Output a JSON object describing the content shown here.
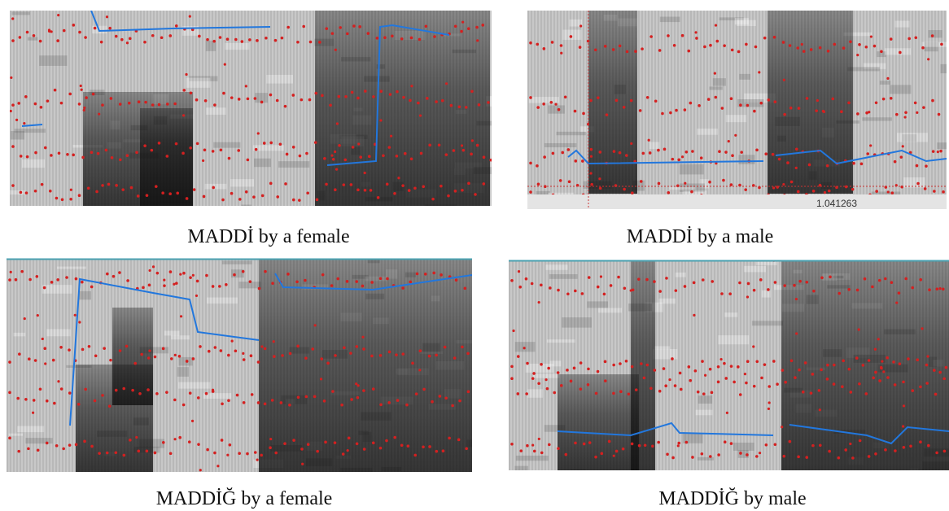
{
  "panels": [
    {
      "caption": "MADDİ by a female"
    },
    {
      "caption": "MADDİ by a male",
      "readout": "1.041263"
    },
    {
      "caption": "MADDİĞ by a female"
    },
    {
      "caption": "MADDİĞ by male"
    }
  ]
}
